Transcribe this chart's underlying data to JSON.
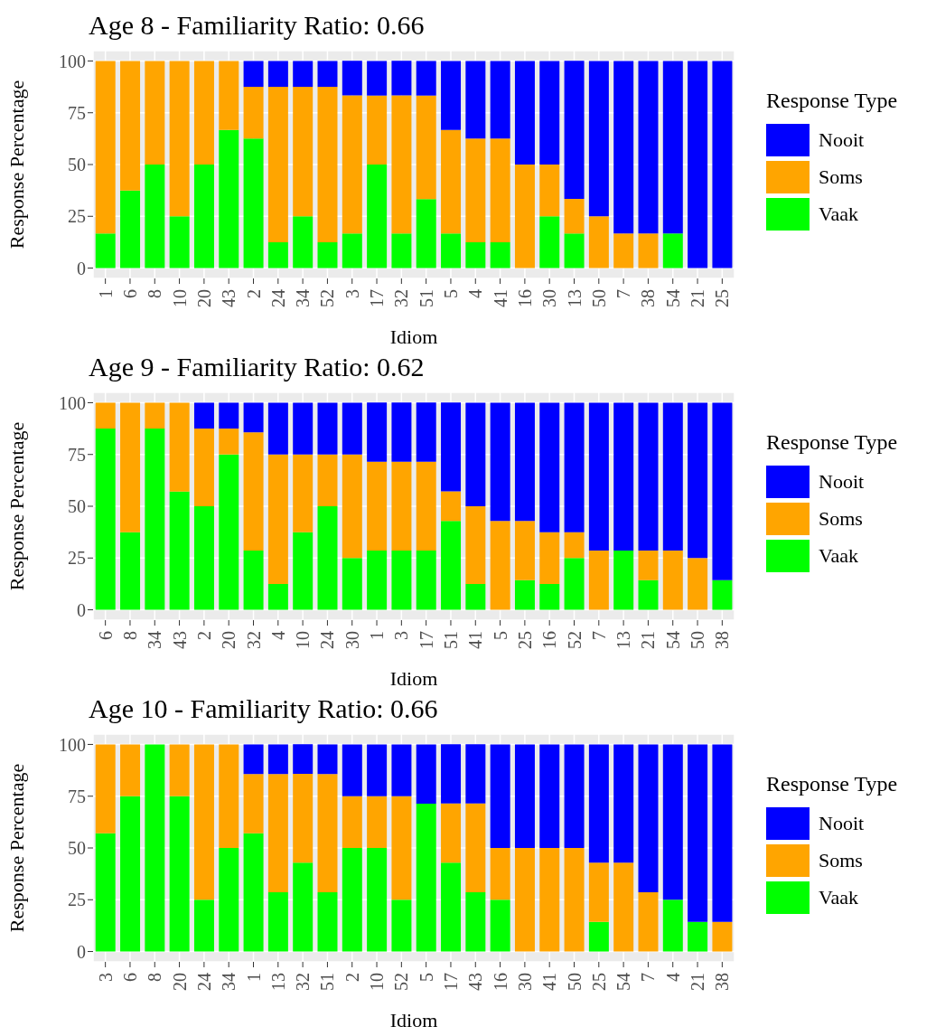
{
  "chart_data": [
    {
      "type": "bar",
      "title": "Age 8 - Familiarity Ratio: 0.66",
      "xlabel": "Idiom",
      "ylabel": "Response Percentage",
      "legend_title": "Response Type",
      "stacked": true,
      "legend": "right",
      "grid": true,
      "ylim": [
        -5,
        105
      ],
      "yticks": [
        0,
        25,
        50,
        75,
        100
      ],
      "categories": [
        "1",
        "6",
        "8",
        "10",
        "20",
        "43",
        "2",
        "24",
        "34",
        "52",
        "3",
        "17",
        "32",
        "51",
        "5",
        "4",
        "41",
        "16",
        "30",
        "13",
        "50",
        "7",
        "38",
        "54",
        "21",
        "25"
      ],
      "series": [
        {
          "name": "Vaak",
          "color": "#00ff00",
          "values": [
            16.7,
            37.5,
            50,
            25,
            50,
            66.7,
            62.5,
            12.5,
            25,
            12.5,
            16.7,
            50,
            16.7,
            33.3,
            16.7,
            12.5,
            12.5,
            0,
            25,
            16.7,
            0,
            0,
            0,
            16.7,
            0,
            0
          ]
        },
        {
          "name": "Soms",
          "color": "#ffa500",
          "values": [
            83.3,
            62.5,
            50,
            75,
            50,
            33.3,
            25,
            75,
            62.5,
            75,
            66.7,
            33.3,
            66.7,
            50,
            50,
            50,
            50,
            50,
            25,
            16.7,
            25,
            16.7,
            16.7,
            0,
            0,
            0
          ]
        },
        {
          "name": "Nooit",
          "color": "#0000ff",
          "values": [
            0,
            0,
            0,
            0,
            0,
            0,
            12.5,
            12.5,
            12.5,
            12.5,
            16.7,
            16.7,
            16.7,
            16.7,
            33.3,
            37.5,
            37.5,
            50,
            50,
            66.7,
            75,
            83.3,
            83.3,
            83.3,
            100,
            100
          ]
        }
      ]
    },
    {
      "type": "bar",
      "title": "Age 9 - Familiarity Ratio: 0.62",
      "xlabel": "Idiom",
      "ylabel": "Response Percentage",
      "legend_title": "Response Type",
      "stacked": true,
      "legend": "right",
      "grid": true,
      "ylim": [
        -5,
        105
      ],
      "yticks": [
        0,
        25,
        50,
        75,
        100
      ],
      "categories": [
        "6",
        "8",
        "34",
        "43",
        "2",
        "20",
        "32",
        "4",
        "10",
        "24",
        "30",
        "1",
        "3",
        "17",
        "51",
        "41",
        "5",
        "25",
        "16",
        "52",
        "7",
        "13",
        "21",
        "54",
        "50",
        "38"
      ],
      "series": [
        {
          "name": "Vaak",
          "color": "#00ff00",
          "values": [
            87.5,
            37.5,
            87.5,
            57.1,
            50,
            75,
            28.6,
            12.5,
            37.5,
            50,
            25,
            28.6,
            28.6,
            28.6,
            42.9,
            12.5,
            0,
            14.3,
            12.5,
            25,
            0,
            28.6,
            14.3,
            0,
            0,
            14.3
          ]
        },
        {
          "name": "Soms",
          "color": "#ffa500",
          "values": [
            12.5,
            62.5,
            12.5,
            42.9,
            37.5,
            12.5,
            57.1,
            62.5,
            37.5,
            25,
            50,
            42.9,
            42.9,
            42.9,
            14.3,
            37.5,
            42.9,
            28.6,
            25,
            12.5,
            28.6,
            0,
            14.3,
            28.6,
            25,
            0
          ]
        },
        {
          "name": "Nooit",
          "color": "#0000ff",
          "values": [
            0,
            0,
            0,
            0,
            12.5,
            12.5,
            14.3,
            25,
            25,
            25,
            25,
            28.6,
            28.6,
            28.6,
            42.9,
            50,
            57.1,
            57.1,
            62.5,
            62.5,
            71.4,
            71.4,
            71.4,
            71.4,
            75,
            85.7
          ]
        }
      ]
    },
    {
      "type": "bar",
      "title": "Age 10 - Familiarity Ratio: 0.66",
      "xlabel": "Idiom",
      "ylabel": "Response Percentage",
      "legend_title": "Response Type",
      "stacked": true,
      "legend": "right",
      "grid": true,
      "ylim": [
        -5,
        105
      ],
      "yticks": [
        0,
        25,
        50,
        75,
        100
      ],
      "categories": [
        "3",
        "6",
        "8",
        "20",
        "24",
        "34",
        "1",
        "13",
        "32",
        "51",
        "2",
        "10",
        "52",
        "5",
        "17",
        "43",
        "16",
        "30",
        "41",
        "50",
        "25",
        "54",
        "7",
        "4",
        "21",
        "38"
      ],
      "series": [
        {
          "name": "Vaak",
          "color": "#00ff00",
          "values": [
            57.1,
            75,
            100,
            75,
            25,
            50,
            57.1,
            28.6,
            42.9,
            28.6,
            50,
            50,
            25,
            71.4,
            42.9,
            28.6,
            25,
            0,
            0,
            0,
            14.3,
            0,
            0,
            25,
            14.3,
            0
          ]
        },
        {
          "name": "Soms",
          "color": "#ffa500",
          "values": [
            42.9,
            25,
            0,
            25,
            75,
            50,
            28.6,
            57.1,
            42.9,
            57.1,
            25,
            25,
            50,
            0,
            28.6,
            42.9,
            25,
            50,
            50,
            50,
            28.6,
            42.9,
            28.6,
            0,
            0,
            14.3
          ]
        },
        {
          "name": "Nooit",
          "color": "#0000ff",
          "values": [
            0,
            0,
            0,
            0,
            0,
            0,
            14.3,
            14.3,
            14.3,
            14.3,
            25,
            25,
            25,
            28.6,
            28.6,
            28.6,
            50,
            50,
            50,
            50,
            57.1,
            57.1,
            71.4,
            75,
            85.7,
            85.7
          ]
        }
      ]
    }
  ]
}
